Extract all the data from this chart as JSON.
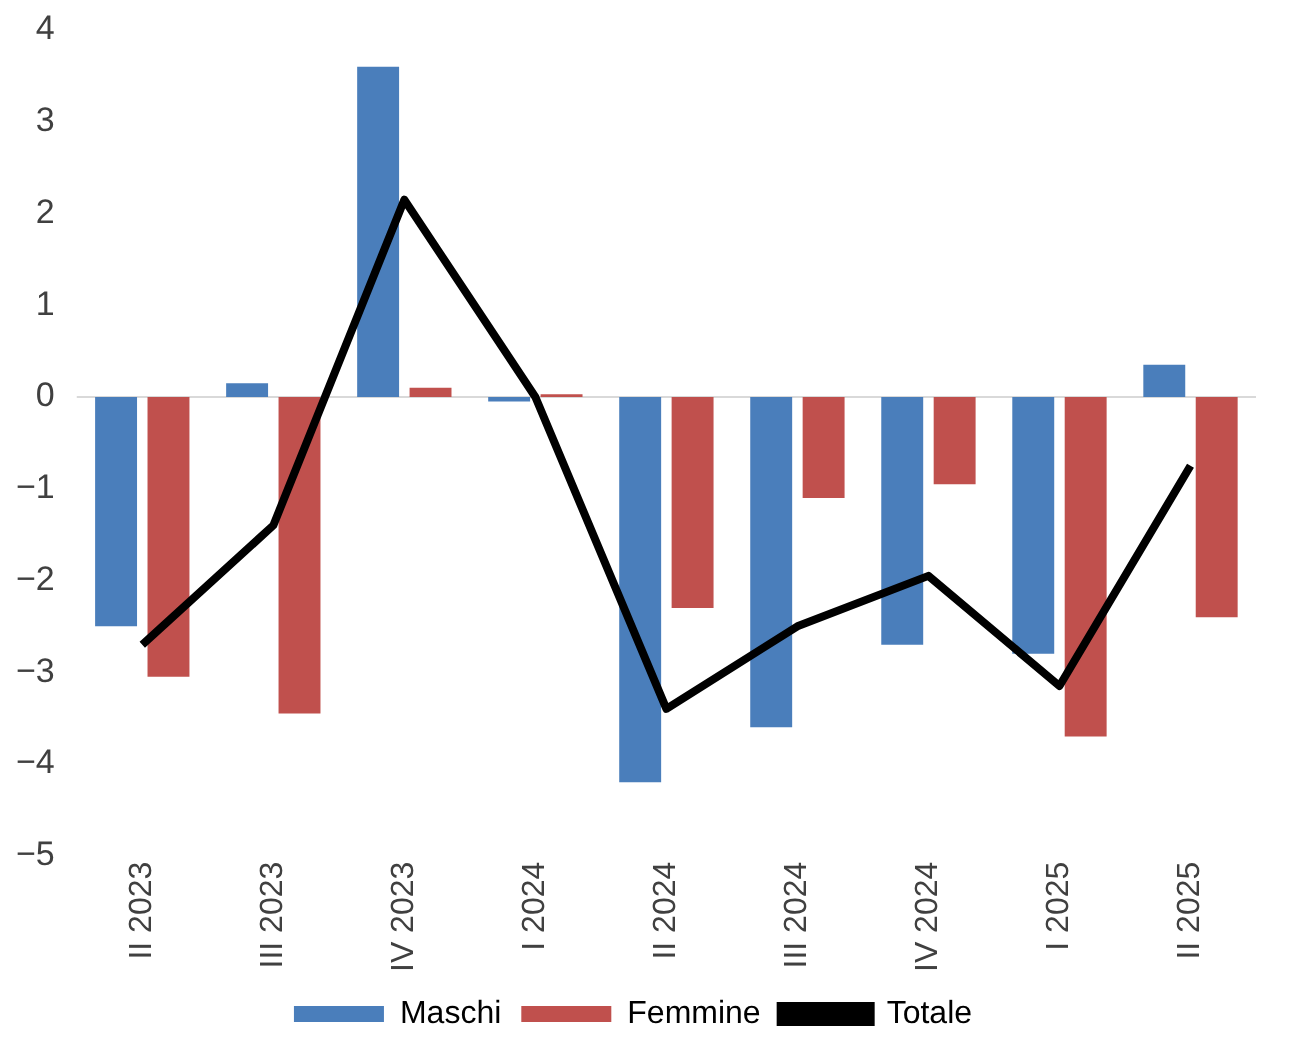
{
  "chart_data": {
    "type": "bar",
    "categories": [
      "II 2023",
      "III 2023",
      "IV 2023",
      "I 2024",
      "II 2024",
      "III 2024",
      "IV 2024",
      "I 2025",
      "II 2025"
    ],
    "series": [
      {
        "name": "Maschi",
        "color": "#4a7ebb",
        "values": [
          -2.5,
          0.15,
          3.6,
          -0.05,
          -4.2,
          -3.6,
          -2.7,
          -2.8,
          0.35
        ]
      },
      {
        "name": "Femmine",
        "color": "#c0504d",
        "values": [
          -3.05,
          -3.45,
          0.1,
          0.03,
          -2.3,
          -1.1,
          -0.95,
          -3.7,
          -2.4
        ]
      },
      {
        "name": "Totale",
        "type": "line",
        "color": "#000000",
        "values": [
          -2.7,
          -1.4,
          2.15,
          0,
          -3.4,
          -2.5,
          -1.95,
          -3.15,
          -0.75
        ]
      }
    ],
    "ylim": [
      -5,
      4
    ],
    "yticks": [
      -5,
      -4,
      -3,
      -2,
      -1,
      0,
      1,
      2,
      3,
      4
    ],
    "grid": false,
    "ref_lines": [
      {
        "axis": "y",
        "value": 0,
        "color": "#d9d9d9"
      }
    ],
    "legend": "bottom",
    "marker": "none"
  }
}
